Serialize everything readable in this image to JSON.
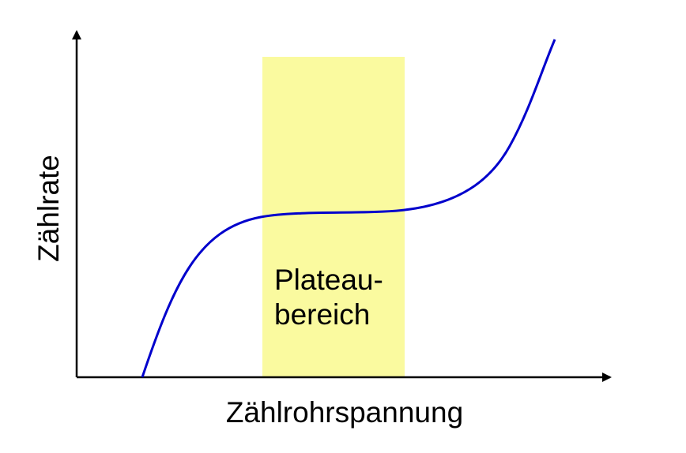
{
  "diagram": {
    "x_label": "Zählrohrspannung",
    "y_label": "Zählrate",
    "region_label_line1": "Plateau-",
    "region_label_line2": "bereich"
  },
  "colors": {
    "background": "#ffffff",
    "curve": "#0000cc",
    "plateau_region": "#fafa9f",
    "axes": "#000000"
  }
}
